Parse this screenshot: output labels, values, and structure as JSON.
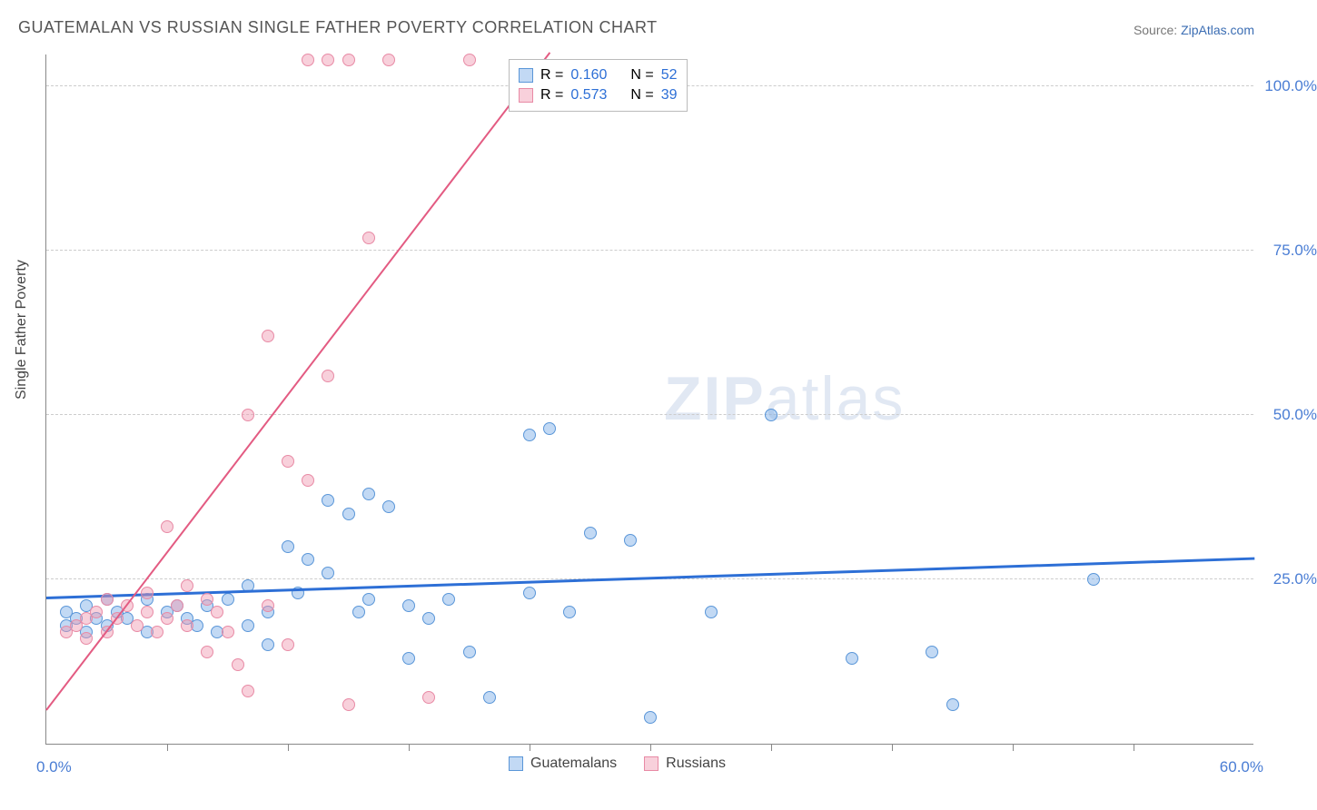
{
  "title": "GUATEMALAN VS RUSSIAN SINGLE FATHER POVERTY CORRELATION CHART",
  "source_label": "Source:",
  "source_link": "ZipAtlas.com",
  "ylabel": "Single Father Poverty",
  "watermark_bold": "ZIP",
  "watermark_light": "atlas",
  "chart": {
    "type": "scatter",
    "xlim": [
      0,
      60
    ],
    "ylim": [
      0,
      105
    ],
    "x_min_label": "0.0%",
    "x_max_label": "60.0%",
    "x_tick_positions": [
      6,
      12,
      18,
      24,
      30,
      36,
      42,
      48,
      54
    ],
    "y_ticks": [
      {
        "v": 25,
        "label": "25.0%"
      },
      {
        "v": 50,
        "label": "50.0%"
      },
      {
        "v": 75,
        "label": "75.0%"
      },
      {
        "v": 100,
        "label": "100.0%"
      }
    ],
    "background_color": "#ffffff",
    "grid_color": "#cccccc",
    "marker_radius": 7,
    "label_color": "#4a7dd4",
    "series": [
      {
        "name": "Guatemalans",
        "fill": "rgba(120,170,230,0.45)",
        "stroke": "#5a96d8",
        "line_color": "#2d6fd6",
        "line_width": 3,
        "R": "0.160",
        "N": "52",
        "regression": {
          "x1": 0,
          "y1": 22,
          "x2": 60,
          "y2": 28
        },
        "points": [
          [
            1,
            18
          ],
          [
            1,
            20
          ],
          [
            1.5,
            19
          ],
          [
            2,
            17
          ],
          [
            2,
            21
          ],
          [
            2.5,
            19
          ],
          [
            3,
            18
          ],
          [
            3,
            22
          ],
          [
            3.5,
            20
          ],
          [
            4,
            19
          ],
          [
            5,
            22
          ],
          [
            5,
            17
          ],
          [
            6,
            20
          ],
          [
            6.5,
            21
          ],
          [
            7,
            19
          ],
          [
            7.5,
            18
          ],
          [
            8,
            21
          ],
          [
            8.5,
            17
          ],
          [
            9,
            22
          ],
          [
            10,
            18
          ],
          [
            10,
            24
          ],
          [
            11,
            20
          ],
          [
            11,
            15
          ],
          [
            12,
            30
          ],
          [
            12.5,
            23
          ],
          [
            13,
            28
          ],
          [
            14,
            26
          ],
          [
            14,
            37
          ],
          [
            15,
            35
          ],
          [
            15.5,
            20
          ],
          [
            16,
            38
          ],
          [
            16,
            22
          ],
          [
            17,
            36
          ],
          [
            18,
            21
          ],
          [
            18,
            13
          ],
          [
            19,
            19
          ],
          [
            20,
            22
          ],
          [
            21,
            14
          ],
          [
            22,
            7
          ],
          [
            24,
            47
          ],
          [
            24,
            23
          ],
          [
            25,
            48
          ],
          [
            26,
            20
          ],
          [
            27,
            32
          ],
          [
            29,
            31
          ],
          [
            30,
            4
          ],
          [
            36,
            50
          ],
          [
            40,
            13
          ],
          [
            44,
            14
          ],
          [
            45,
            6
          ],
          [
            52,
            25
          ],
          [
            33,
            20
          ]
        ]
      },
      {
        "name": "Russians",
        "fill": "rgba(240,150,175,0.45)",
        "stroke": "#e88aa5",
        "line_color": "#e35b82",
        "line_width": 2,
        "R": "0.573",
        "N": "39",
        "regression": {
          "x1": 0,
          "y1": 5,
          "x2": 25,
          "y2": 105
        },
        "points": [
          [
            1,
            17
          ],
          [
            1.5,
            18
          ],
          [
            2,
            19
          ],
          [
            2,
            16
          ],
          [
            2.5,
            20
          ],
          [
            3,
            17
          ],
          [
            3,
            22
          ],
          [
            3.5,
            19
          ],
          [
            4,
            21
          ],
          [
            4.5,
            18
          ],
          [
            5,
            20
          ],
          [
            5,
            23
          ],
          [
            5.5,
            17
          ],
          [
            6,
            19
          ],
          [
            6,
            33
          ],
          [
            6.5,
            21
          ],
          [
            7,
            18
          ],
          [
            7,
            24
          ],
          [
            8,
            14
          ],
          [
            8,
            22
          ],
          [
            8.5,
            20
          ],
          [
            9,
            17
          ],
          [
            9.5,
            12
          ],
          [
            10,
            50
          ],
          [
            10,
            8
          ],
          [
            11,
            21
          ],
          [
            11,
            62
          ],
          [
            12,
            15
          ],
          [
            12,
            43
          ],
          [
            13,
            40
          ],
          [
            13,
            104
          ],
          [
            14,
            104
          ],
          [
            14,
            56
          ],
          [
            15,
            104
          ],
          [
            15,
            6
          ],
          [
            16,
            77
          ],
          [
            17,
            104
          ],
          [
            19,
            7
          ],
          [
            21,
            104
          ]
        ]
      }
    ]
  },
  "stats_box": {
    "r_label": "R =",
    "n_label": "N ="
  },
  "legend": {
    "items": [
      "Guatemalans",
      "Russians"
    ]
  }
}
